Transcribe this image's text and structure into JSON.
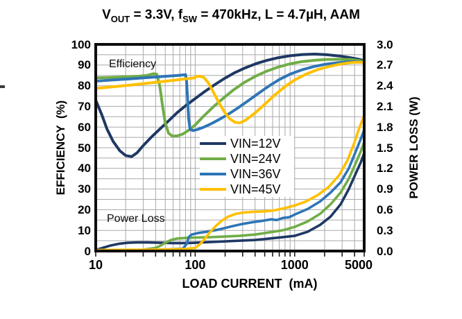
{
  "title": {
    "v": "V",
    "v_sub": "OUT",
    "seg1": " = 3.3V, f",
    "f_sub": "SW",
    "seg2": " = 470kHz, L = 4.7µH, AAM",
    "full": "VOUT = 3.3V, fSW = 470kHz, L = 4.7µH, AAM"
  },
  "chart_data": {
    "type": "line",
    "title": "VOUT = 3.3V, fSW = 470kHz, L = 4.7µH, AAM",
    "x_axis": {
      "label": "LOAD CURRENT  (mA)",
      "scale": "log",
      "range": [
        10,
        5000
      ],
      "ticks": [
        "10",
        "100",
        "1000",
        "5000"
      ]
    },
    "y_left": {
      "label": "EFFICIENCY  (%)",
      "range": [
        0,
        100
      ],
      "ticks": [
        "100",
        "90",
        "80",
        "70",
        "60",
        "50",
        "40",
        "30",
        "20",
        "10",
        "0"
      ]
    },
    "y_right": {
      "label": "POWER LOSS (W)",
      "range": [
        0.0,
        3.0
      ],
      "ticks": [
        "3.0",
        "2.7",
        "2.4",
        "2.1",
        "1.8",
        "1.5",
        "1.2",
        "0.9",
        "0.6",
        "0.3",
        "0.0"
      ]
    },
    "annotations": [
      "Efficiency",
      "Power Loss"
    ],
    "grid": {
      "on": true,
      "color": "#a8a8a8",
      "minor_y_step_pct": 5
    },
    "border_color": "#0d0d0d",
    "legend_position": "center",
    "series": [
      {
        "name": "VIN=12V",
        "color": "#1F3864",
        "efficiency": [
          [
            10,
            73
          ],
          [
            11.5,
            66
          ],
          [
            13,
            59
          ],
          [
            15,
            53
          ],
          [
            17.5,
            48.5
          ],
          [
            20,
            46.2
          ],
          [
            23,
            45.7
          ],
          [
            26,
            47.5
          ],
          [
            30,
            51
          ],
          [
            36,
            55
          ],
          [
            44,
            59
          ],
          [
            54,
            63
          ],
          [
            66,
            67
          ],
          [
            80,
            70.3
          ],
          [
            100,
            73.8
          ],
          [
            125,
            77.2
          ],
          [
            155,
            80.3
          ],
          [
            195,
            83.4
          ],
          [
            250,
            86.3
          ],
          [
            320,
            88.7
          ],
          [
            410,
            90.7
          ],
          [
            530,
            92.3
          ],
          [
            690,
            93.6
          ],
          [
            900,
            94.5
          ],
          [
            1200,
            95.1
          ],
          [
            1600,
            95.3
          ],
          [
            2100,
            95
          ],
          [
            2800,
            94.4
          ],
          [
            3600,
            93.6
          ],
          [
            4400,
            92.8
          ],
          [
            5000,
            92.2
          ]
        ],
        "power_loss": [
          [
            10,
            0.015
          ],
          [
            12,
            0.05
          ],
          [
            14,
            0.08
          ],
          [
            17,
            0.105
          ],
          [
            21,
            0.12
          ],
          [
            26,
            0.125
          ],
          [
            33,
            0.125
          ],
          [
            45,
            0.12
          ],
          [
            60,
            0.115
          ],
          [
            80,
            0.115
          ],
          [
            100,
            0.12
          ],
          [
            140,
            0.13
          ],
          [
            200,
            0.14
          ],
          [
            280,
            0.15
          ],
          [
            400,
            0.16
          ],
          [
            550,
            0.18
          ],
          [
            750,
            0.2
          ],
          [
            1000,
            0.22
          ],
          [
            1350,
            0.28
          ],
          [
            1800,
            0.38
          ],
          [
            2300,
            0.5
          ],
          [
            2900,
            0.68
          ],
          [
            3500,
            0.9
          ],
          [
            4100,
            1.12
          ],
          [
            4600,
            1.28
          ],
          [
            5000,
            1.42
          ]
        ]
      },
      {
        "name": "VIN=24V",
        "color": "#70AD47",
        "efficiency": [
          [
            10,
            83.8
          ],
          [
            14,
            84
          ],
          [
            20,
            84.3
          ],
          [
            27,
            84.6
          ],
          [
            33,
            85
          ],
          [
            38,
            85.8
          ],
          [
            41,
            85.6
          ],
          [
            44,
            80
          ],
          [
            47,
            70
          ],
          [
            50,
            62
          ],
          [
            54,
            57
          ],
          [
            59,
            55.6
          ],
          [
            66,
            55.7
          ],
          [
            75,
            56.6
          ],
          [
            88,
            58.8
          ],
          [
            100,
            61
          ],
          [
            120,
            65
          ],
          [
            150,
            69.5
          ],
          [
            190,
            73.8
          ],
          [
            240,
            77.8
          ],
          [
            310,
            81.5
          ],
          [
            400,
            84.5
          ],
          [
            520,
            87
          ],
          [
            680,
            89
          ],
          [
            900,
            90.6
          ],
          [
            1200,
            91.7
          ],
          [
            1600,
            92.3
          ],
          [
            2100,
            92.7
          ],
          [
            2800,
            92.8
          ],
          [
            3600,
            92.7
          ],
          [
            4400,
            92.2
          ],
          [
            5000,
            91.8
          ]
        ],
        "power_loss": [
          [
            10,
            0.01
          ],
          [
            20,
            0.012
          ],
          [
            30,
            0.02
          ],
          [
            40,
            0.045
          ],
          [
            45,
            0.08
          ],
          [
            50,
            0.12
          ],
          [
            57,
            0.16
          ],
          [
            65,
            0.18
          ],
          [
            80,
            0.19
          ],
          [
            100,
            0.195
          ],
          [
            140,
            0.2
          ],
          [
            200,
            0.21
          ],
          [
            280,
            0.22
          ],
          [
            400,
            0.24
          ],
          [
            550,
            0.27
          ],
          [
            750,
            0.3
          ],
          [
            1000,
            0.35
          ],
          [
            1350,
            0.43
          ],
          [
            1800,
            0.54
          ],
          [
            2300,
            0.68
          ],
          [
            2900,
            0.85
          ],
          [
            3500,
            1.05
          ],
          [
            4100,
            1.27
          ],
          [
            4600,
            1.44
          ],
          [
            5000,
            1.58
          ]
        ]
      },
      {
        "name": "VIN=36V",
        "color": "#2E75B6",
        "efficiency": [
          [
            10,
            82.2
          ],
          [
            15,
            82.8
          ],
          [
            22,
            83.3
          ],
          [
            32,
            83.9
          ],
          [
            45,
            84.4
          ],
          [
            60,
            84.8
          ],
          [
            72,
            85.1
          ],
          [
            80,
            85.3
          ],
          [
            82,
            82
          ],
          [
            84,
            73
          ],
          [
            86,
            64
          ],
          [
            89,
            58.8
          ],
          [
            95,
            58.3
          ],
          [
            105,
            58.8
          ],
          [
            120,
            59.8
          ],
          [
            145,
            61.6
          ],
          [
            175,
            63.7
          ],
          [
            215,
            66.2
          ],
          [
            270,
            69.3
          ],
          [
            340,
            72.7
          ],
          [
            430,
            76.2
          ],
          [
            550,
            79.8
          ],
          [
            700,
            83
          ],
          [
            900,
            85.6
          ],
          [
            1200,
            87.8
          ],
          [
            1600,
            89.4
          ],
          [
            2100,
            90.5
          ],
          [
            2800,
            91.2
          ],
          [
            3600,
            91.6
          ],
          [
            4400,
            91.6
          ],
          [
            5000,
            91.4
          ]
        ],
        "power_loss": [
          [
            10,
            0.01
          ],
          [
            20,
            0.013
          ],
          [
            35,
            0.018
          ],
          [
            55,
            0.025
          ],
          [
            75,
            0.035
          ],
          [
            82,
            0.1
          ],
          [
            86,
            0.2
          ],
          [
            92,
            0.24
          ],
          [
            105,
            0.26
          ],
          [
            130,
            0.28
          ],
          [
            170,
            0.31
          ],
          [
            220,
            0.35
          ],
          [
            290,
            0.39
          ],
          [
            380,
            0.42
          ],
          [
            480,
            0.44
          ],
          [
            580,
            0.46
          ],
          [
            660,
            0.45
          ],
          [
            760,
            0.48
          ],
          [
            880,
            0.49
          ],
          [
            1000,
            0.53
          ],
          [
            1350,
            0.61
          ],
          [
            1800,
            0.72
          ],
          [
            2300,
            0.85
          ],
          [
            2900,
            1.0
          ],
          [
            3500,
            1.2
          ],
          [
            4100,
            1.44
          ],
          [
            4600,
            1.62
          ],
          [
            5000,
            1.76
          ]
        ]
      },
      {
        "name": "VIN=45V",
        "color": "#FFC000",
        "efficiency": [
          [
            10,
            78.7
          ],
          [
            15,
            79.5
          ],
          [
            22,
            80.3
          ],
          [
            32,
            81.1
          ],
          [
            45,
            81.9
          ],
          [
            60,
            82.6
          ],
          [
            75,
            83.2
          ],
          [
            90,
            83.6
          ],
          [
            99,
            83.8
          ],
          [
            102,
            84.5
          ],
          [
            112,
            84.6
          ],
          [
            122,
            84
          ],
          [
            135,
            81.5
          ],
          [
            150,
            77.5
          ],
          [
            170,
            72.5
          ],
          [
            195,
            67.5
          ],
          [
            220,
            64.2
          ],
          [
            250,
            62.3
          ],
          [
            280,
            62
          ],
          [
            320,
            63.3
          ],
          [
            400,
            66.8
          ],
          [
            500,
            71
          ],
          [
            630,
            75.5
          ],
          [
            800,
            79.6
          ],
          [
            1000,
            82.8
          ],
          [
            1300,
            85.6
          ],
          [
            1700,
            87.8
          ],
          [
            2200,
            89.3
          ],
          [
            2900,
            90.5
          ],
          [
            3700,
            91.2
          ],
          [
            4400,
            91.4
          ],
          [
            5000,
            91.2
          ]
        ],
        "power_loss": [
          [
            10,
            0.015
          ],
          [
            20,
            0.018
          ],
          [
            35,
            0.02
          ],
          [
            55,
            0.025
          ],
          [
            80,
            0.03
          ],
          [
            100,
            0.045
          ],
          [
            112,
            0.1
          ],
          [
            125,
            0.18
          ],
          [
            140,
            0.27
          ],
          [
            160,
            0.36
          ],
          [
            185,
            0.44
          ],
          [
            215,
            0.5
          ],
          [
            255,
            0.54
          ],
          [
            310,
            0.56
          ],
          [
            390,
            0.57
          ],
          [
            490,
            0.575
          ],
          [
            620,
            0.59
          ],
          [
            780,
            0.62
          ],
          [
            1000,
            0.66
          ],
          [
            1300,
            0.72
          ],
          [
            1700,
            0.81
          ],
          [
            2200,
            0.93
          ],
          [
            2800,
            1.1
          ],
          [
            3400,
            1.32
          ],
          [
            4000,
            1.58
          ],
          [
            4500,
            1.8
          ],
          [
            5000,
            1.97
          ]
        ]
      }
    ]
  }
}
